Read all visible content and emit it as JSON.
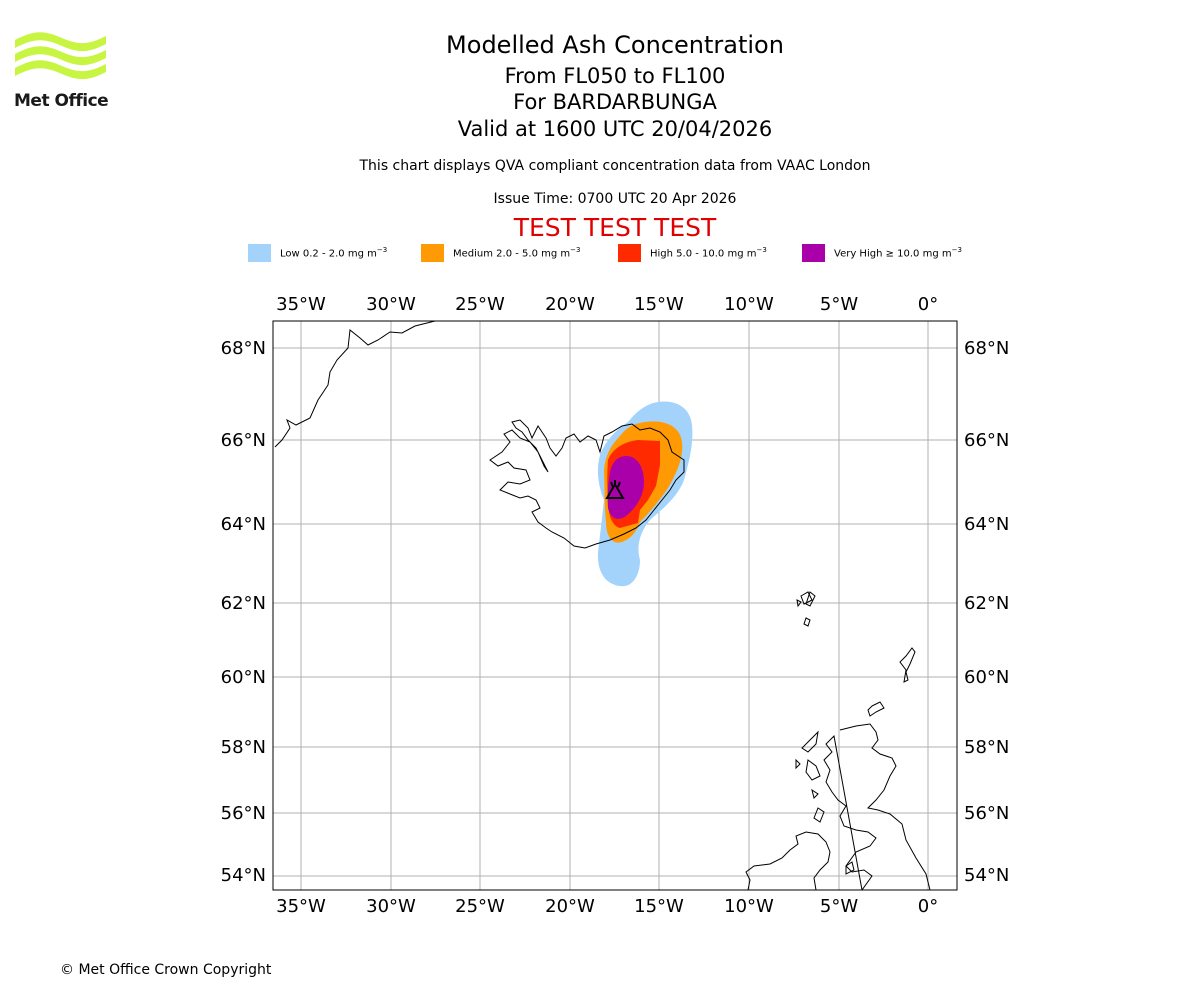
{
  "header": {
    "logo_name": "Met Office",
    "title": "Modelled Ash Concentration",
    "levels": "From FL050 to FL100",
    "volcano": "For BARDARBUNGA",
    "valid_time": "Valid at 1600 UTC 20/04/2026",
    "qva_note": "This chart displays QVA compliant concentration data from VAAC London",
    "issue_time": "Issue Time: 0700 UTC 20 Apr 2026",
    "test_banner": "TEST TEST TEST"
  },
  "legend": {
    "items": [
      {
        "label": "Low 0.2 - 2.0 mg m",
        "exp": "−3",
        "color": "#a3d3fb"
      },
      {
        "label": "Medium 2.0 - 5.0 mg m",
        "exp": "−3",
        "color": "#ff9a05"
      },
      {
        "label": "High 5.0 - 10.0 mg m",
        "exp": "−3",
        "color": "#ff2a00"
      },
      {
        "label": "Very High  ≥  10.0 mg m",
        "exp": "−3",
        "color": "#aa00aa"
      }
    ]
  },
  "map": {
    "lon_ticks": [
      "35°W",
      "30°W",
      "25°W",
      "20°W",
      "15°W",
      "10°W",
      "5°W",
      "0°"
    ],
    "lat_ticks": [
      "68°N",
      "66°N",
      "64°N",
      "62°N",
      "60°N",
      "58°N",
      "56°N",
      "54°N"
    ],
    "volcano_symbol": "volcano-marker"
  },
  "footer": {
    "copyright": "© Met Office Crown Copyright"
  }
}
